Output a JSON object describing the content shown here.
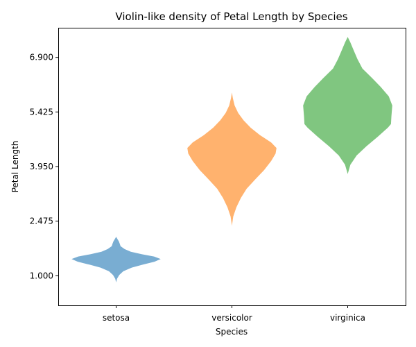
{
  "chart_data": {
    "type": "violin",
    "title": "Violin-like density of Petal Length by Species",
    "xlabel": "Species",
    "ylabel": "Petal Length",
    "categories": [
      "setosa",
      "versicolor",
      "virginica"
    ],
    "ylim": [
      0.2,
      7.7
    ],
    "yticks": [
      "1.000",
      "2.475",
      "3.950",
      "5.425",
      "6.900"
    ],
    "grid": false,
    "colors": [
      "#1f77b4",
      "#ff7f0e",
      "#2ca02c"
    ],
    "opacity": 0.6,
    "series": [
      {
        "category": "setosa",
        "profile": [
          [
            0.82,
            0.0
          ],
          [
            0.92,
            0.02
          ],
          [
            1.02,
            0.07
          ],
          [
            1.12,
            0.16
          ],
          [
            1.22,
            0.35
          ],
          [
            1.3,
            0.6
          ],
          [
            1.38,
            0.86
          ],
          [
            1.45,
            1.0
          ],
          [
            1.52,
            0.85
          ],
          [
            1.58,
            0.58
          ],
          [
            1.65,
            0.33
          ],
          [
            1.72,
            0.19
          ],
          [
            1.8,
            0.1
          ],
          [
            1.87,
            0.08
          ],
          [
            1.93,
            0.06
          ],
          [
            1.99,
            0.03
          ],
          [
            2.05,
            0.0
          ]
        ]
      },
      {
        "category": "versicolor",
        "profile": [
          [
            2.35,
            0.0
          ],
          [
            2.6,
            0.03
          ],
          [
            2.85,
            0.1
          ],
          [
            3.1,
            0.2
          ],
          [
            3.35,
            0.33
          ],
          [
            3.6,
            0.52
          ],
          [
            3.85,
            0.72
          ],
          [
            4.1,
            0.88
          ],
          [
            4.3,
            0.98
          ],
          [
            4.45,
            1.0
          ],
          [
            4.6,
            0.88
          ],
          [
            4.8,
            0.63
          ],
          [
            5.0,
            0.42
          ],
          [
            5.2,
            0.26
          ],
          [
            5.4,
            0.14
          ],
          [
            5.6,
            0.06
          ],
          [
            5.8,
            0.02
          ],
          [
            5.95,
            0.0
          ]
        ]
      },
      {
        "category": "virginica",
        "profile": [
          [
            3.75,
            0.0
          ],
          [
            4.0,
            0.06
          ],
          [
            4.25,
            0.2
          ],
          [
            4.5,
            0.42
          ],
          [
            4.75,
            0.67
          ],
          [
            5.0,
            0.9
          ],
          [
            5.1,
            0.97
          ],
          [
            5.3,
            0.98
          ],
          [
            5.6,
            1.0
          ],
          [
            5.85,
            0.92
          ],
          [
            6.1,
            0.74
          ],
          [
            6.35,
            0.54
          ],
          [
            6.6,
            0.33
          ],
          [
            6.85,
            0.22
          ],
          [
            7.1,
            0.13
          ],
          [
            7.3,
            0.06
          ],
          [
            7.45,
            0.0
          ]
        ]
      }
    ]
  }
}
